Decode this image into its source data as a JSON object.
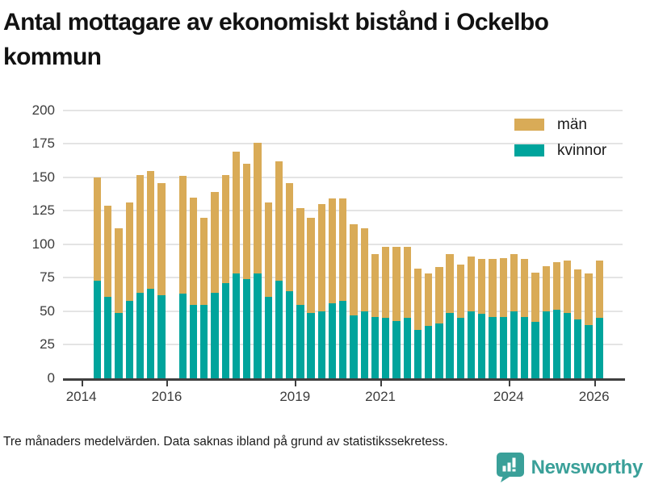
{
  "title": "Antal mottagare av ekonomiskt bistånd i Ockelbo kommun",
  "legend": [
    {
      "label": "män",
      "color": "#d9ab57"
    },
    {
      "label": "kvinnor",
      "color": "#00a49c"
    }
  ],
  "footer": {
    "note": "Tre månaders medelvärden. Data saknas ibland på grund av statistikssekretess.",
    "brand": "Newsworthy",
    "brand_color": "#3aa099"
  },
  "chart_data": {
    "type": "bar",
    "stacked": true,
    "title": "Antal mottagare av ekonomiskt bistånd i Ockelbo kommun",
    "xlabel": "",
    "ylabel": "",
    "ylim": [
      0,
      200
    ],
    "yticks": [
      0,
      25,
      50,
      75,
      100,
      125,
      150,
      175,
      200
    ],
    "xticks": [
      2014,
      2016,
      2019,
      2021,
      2024,
      2026
    ],
    "grid": true,
    "legend_position": "top-right",
    "missing_periods": [
      "2016Q1"
    ],
    "categories": [
      "2014Q2",
      "2014Q3",
      "2014Q4",
      "2015Q1",
      "2015Q2",
      "2015Q3",
      "2015Q4",
      "2016Q1",
      "2016Q2",
      "2016Q3",
      "2016Q4",
      "2017Q1",
      "2017Q2",
      "2017Q3",
      "2017Q4",
      "2018Q1",
      "2018Q2",
      "2018Q3",
      "2018Q4",
      "2019Q1",
      "2019Q2",
      "2019Q3",
      "2019Q4",
      "2020Q1",
      "2020Q2",
      "2020Q3",
      "2020Q4",
      "2021Q1",
      "2021Q2",
      "2021Q3",
      "2021Q4",
      "2022Q1",
      "2022Q2",
      "2022Q3",
      "2022Q4",
      "2023Q1",
      "2023Q2",
      "2023Q3",
      "2023Q4",
      "2024Q1",
      "2024Q2",
      "2024Q3",
      "2024Q4",
      "2025Q1",
      "2025Q2",
      "2025Q3",
      "2025Q4",
      "2026Q1"
    ],
    "series": [
      {
        "name": "kvinnor",
        "color": "#00a49c",
        "values": [
          73,
          61,
          49,
          58,
          64,
          67,
          62,
          null,
          63,
          55,
          55,
          64,
          71,
          78,
          74,
          78,
          61,
          73,
          65,
          55,
          49,
          50,
          56,
          58,
          47,
          50,
          46,
          45,
          43,
          45,
          36,
          39,
          41,
          49,
          45,
          50,
          48,
          46,
          46,
          50,
          46,
          42,
          50,
          51,
          49,
          44,
          40,
          45
        ]
      },
      {
        "name": "män",
        "color": "#d9ab57",
        "values": [
          77,
          68,
          63,
          73,
          88,
          88,
          84,
          null,
          88,
          80,
          65,
          75,
          81,
          91,
          86,
          98,
          70,
          89,
          81,
          72,
          71,
          80,
          78,
          76,
          68,
          62,
          47,
          53,
          55,
          53,
          46,
          39,
          42,
          44,
          40,
          41,
          41,
          43,
          44,
          43,
          43,
          37,
          34,
          36,
          39,
          37,
          38,
          43
        ]
      }
    ]
  }
}
